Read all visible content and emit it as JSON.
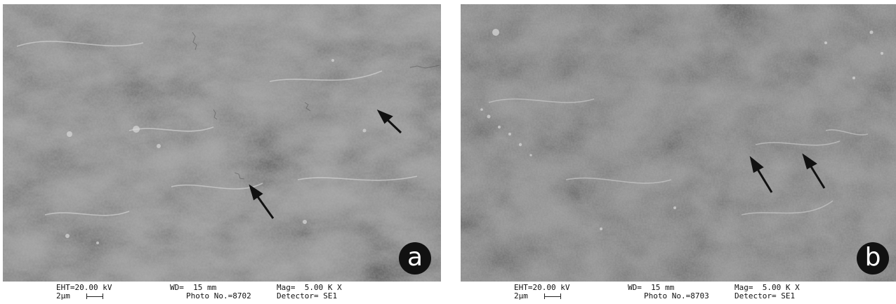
{
  "panels": [
    {
      "id": "a",
      "letter": "a",
      "eht": "EHT=20.00 kV",
      "scale_label": "2µm",
      "wd": "WD=  15 mm",
      "photo": "Photo No.=8702",
      "mag": "Mag=  5.00 K X",
      "detector": "Detector= SE1",
      "arrow_count": 2
    },
    {
      "id": "b",
      "letter": "b",
      "eht": "EHT=20.00 kV",
      "scale_label": "2µm",
      "wd": "WD=  15 mm",
      "photo": "Photo No.=8703",
      "mag": "Mag=  5.00 K X",
      "detector": "Detector= SE1",
      "arrow_count": 2
    }
  ],
  "colors": {
    "surface": "#8e8e8e",
    "highlight": "#c8c8c8",
    "shadow": "#5a5a5a",
    "arrow": "#111111",
    "label_disc": "#111111"
  }
}
